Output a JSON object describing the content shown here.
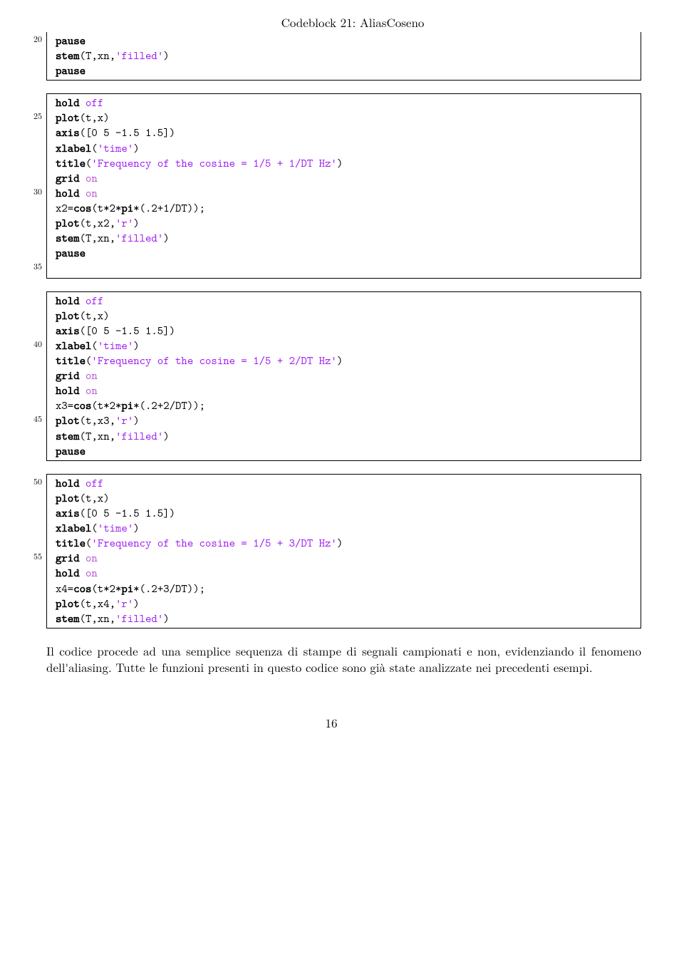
{
  "title": "Codeblock 21: AliasCoseno",
  "lineNumbers": [
    "20",
    "25",
    "30",
    "35",
    "40",
    "45",
    "50",
    "55"
  ],
  "colors": {
    "keyword": "#000000",
    "string": "#a020f0",
    "on": "#ba55d3",
    "text": "#000000",
    "background": "#ffffff",
    "border": "#000000"
  },
  "blocks": [
    {
      "id": "block1",
      "noTop": true,
      "lines": [
        {
          "num": "20",
          "tokens": [
            {
              "t": "pause",
              "c": "kw"
            }
          ]
        },
        {
          "tokens": [
            {
              "t": "stem",
              "c": "kw"
            },
            {
              "t": "(T,xn,"
            },
            {
              "t": "'filled'",
              "c": "str"
            },
            {
              "t": ")"
            }
          ]
        },
        {
          "tokens": [
            {
              "t": "pause",
              "c": "kw"
            }
          ]
        }
      ]
    },
    {
      "id": "block2",
      "lines": [
        {
          "tokens": [
            {
              "t": "hold",
              "c": "kw"
            },
            {
              "t": " "
            },
            {
              "t": "off",
              "c": "str"
            }
          ]
        },
        {
          "num": "25",
          "tokens": [
            {
              "t": "plot",
              "c": "kw"
            },
            {
              "t": "(t,x)"
            }
          ]
        },
        {
          "tokens": [
            {
              "t": "axis",
              "c": "kw"
            },
            {
              "t": "([0 5 -1.5 1.5])"
            }
          ]
        },
        {
          "tokens": [
            {
              "t": "xlabel",
              "c": "kw"
            },
            {
              "t": "("
            },
            {
              "t": "'time'",
              "c": "str"
            },
            {
              "t": ")"
            }
          ]
        },
        {
          "tokens": [
            {
              "t": "title",
              "c": "kw"
            },
            {
              "t": "("
            },
            {
              "t": "'Frequency of the cosine = 1/5 + 1/DT Hz'",
              "c": "str"
            },
            {
              "t": ")"
            }
          ]
        },
        {
          "tokens": [
            {
              "t": "grid",
              "c": "kw"
            },
            {
              "t": " "
            },
            {
              "t": "on",
              "c": "on"
            }
          ]
        },
        {
          "num": "30",
          "tokens": [
            {
              "t": "hold",
              "c": "kw"
            },
            {
              "t": " "
            },
            {
              "t": "on",
              "c": "on"
            }
          ]
        },
        {
          "tokens": [
            {
              "t": "x2="
            },
            {
              "t": "cos",
              "c": "kw"
            },
            {
              "t": "(t*2*"
            },
            {
              "t": "pi",
              "c": "kw"
            },
            {
              "t": "*(.2+1/DT));"
            }
          ]
        },
        {
          "tokens": [
            {
              "t": "plot",
              "c": "kw"
            },
            {
              "t": "(t,x2,"
            },
            {
              "t": "'r'",
              "c": "str"
            },
            {
              "t": ")"
            }
          ]
        },
        {
          "tokens": [
            {
              "t": "stem",
              "c": "kw"
            },
            {
              "t": "(T,xn,"
            },
            {
              "t": "'filled'",
              "c": "str"
            },
            {
              "t": ")"
            }
          ]
        },
        {
          "tokens": [
            {
              "t": "pause",
              "c": "kw"
            }
          ]
        },
        {
          "num": "35",
          "tokens": [
            {
              "t": ""
            }
          ]
        }
      ]
    },
    {
      "id": "block3",
      "lines": [
        {
          "tokens": [
            {
              "t": "hold",
              "c": "kw"
            },
            {
              "t": " "
            },
            {
              "t": "off",
              "c": "str"
            }
          ]
        },
        {
          "tokens": [
            {
              "t": "plot",
              "c": "kw"
            },
            {
              "t": "(t,x)"
            }
          ]
        },
        {
          "tokens": [
            {
              "t": "axis",
              "c": "kw"
            },
            {
              "t": "([0 5 -1.5 1.5])"
            }
          ]
        },
        {
          "num": "40",
          "tokens": [
            {
              "t": "xlabel",
              "c": "kw"
            },
            {
              "t": "("
            },
            {
              "t": "'time'",
              "c": "str"
            },
            {
              "t": ")"
            }
          ]
        },
        {
          "tokens": [
            {
              "t": "title",
              "c": "kw"
            },
            {
              "t": "("
            },
            {
              "t": "'Frequency of the cosine = 1/5 + 2/DT Hz'",
              "c": "str"
            },
            {
              "t": ")"
            }
          ]
        },
        {
          "tokens": [
            {
              "t": "grid",
              "c": "kw"
            },
            {
              "t": " "
            },
            {
              "t": "on",
              "c": "on"
            }
          ]
        },
        {
          "tokens": [
            {
              "t": "hold",
              "c": "kw"
            },
            {
              "t": " "
            },
            {
              "t": "on",
              "c": "on"
            }
          ]
        },
        {
          "tokens": [
            {
              "t": "x3="
            },
            {
              "t": "cos",
              "c": "kw"
            },
            {
              "t": "(t*2*"
            },
            {
              "t": "pi",
              "c": "kw"
            },
            {
              "t": "*(.2+2/DT));"
            }
          ]
        },
        {
          "num": "45",
          "tokens": [
            {
              "t": "plot",
              "c": "kw"
            },
            {
              "t": "(t,x3,"
            },
            {
              "t": "'r'",
              "c": "str"
            },
            {
              "t": ")"
            }
          ]
        },
        {
          "tokens": [
            {
              "t": "stem",
              "c": "kw"
            },
            {
              "t": "(T,xn,"
            },
            {
              "t": "'filled'",
              "c": "str"
            },
            {
              "t": ")"
            }
          ]
        },
        {
          "tokens": [
            {
              "t": "pause",
              "c": "kw"
            }
          ]
        }
      ]
    },
    {
      "id": "block4",
      "noBottom": false,
      "lines": [
        {
          "num": "50",
          "tokens": [
            {
              "t": "hold",
              "c": "kw"
            },
            {
              "t": " "
            },
            {
              "t": "off",
              "c": "str"
            }
          ]
        },
        {
          "tokens": [
            {
              "t": "plot",
              "c": "kw"
            },
            {
              "t": "(t,x)"
            }
          ]
        },
        {
          "tokens": [
            {
              "t": "axis",
              "c": "kw"
            },
            {
              "t": "([0 5 -1.5 1.5])"
            }
          ]
        },
        {
          "tokens": [
            {
              "t": "xlabel",
              "c": "kw"
            },
            {
              "t": "("
            },
            {
              "t": "'time'",
              "c": "str"
            },
            {
              "t": ")"
            }
          ]
        },
        {
          "tokens": [
            {
              "t": "title",
              "c": "kw"
            },
            {
              "t": "("
            },
            {
              "t": "'Frequency of the cosine = 1/5 + 3/DT Hz'",
              "c": "str"
            },
            {
              "t": ")"
            }
          ]
        },
        {
          "num": "55",
          "tokens": [
            {
              "t": "grid",
              "c": "kw"
            },
            {
              "t": " "
            },
            {
              "t": "on",
              "c": "on"
            }
          ]
        },
        {
          "tokens": [
            {
              "t": "hold",
              "c": "kw"
            },
            {
              "t": " "
            },
            {
              "t": "on",
              "c": "on"
            }
          ]
        },
        {
          "tokens": [
            {
              "t": "x4="
            },
            {
              "t": "cos",
              "c": "kw"
            },
            {
              "t": "(t*2*"
            },
            {
              "t": "pi",
              "c": "kw"
            },
            {
              "t": "*(.2+3/DT));"
            }
          ]
        },
        {
          "tokens": [
            {
              "t": "plot",
              "c": "kw"
            },
            {
              "t": "(t,x4,"
            },
            {
              "t": "'r'",
              "c": "str"
            },
            {
              "t": ")"
            }
          ]
        },
        {
          "tokens": [
            {
              "t": "stem",
              "c": "kw"
            },
            {
              "t": "(T,xn,"
            },
            {
              "t": "'filled'",
              "c": "str"
            },
            {
              "t": ")"
            }
          ]
        }
      ]
    }
  ],
  "paragraph": "Il codice procede ad una semplice sequenza di stampe di segnali campionati e non, evidenziando il fenomeno dell'aliasing. Tutte le funzioni presenti in questo codice sono già state analizzate nei precedenti esempi.",
  "pageNumber": "16"
}
